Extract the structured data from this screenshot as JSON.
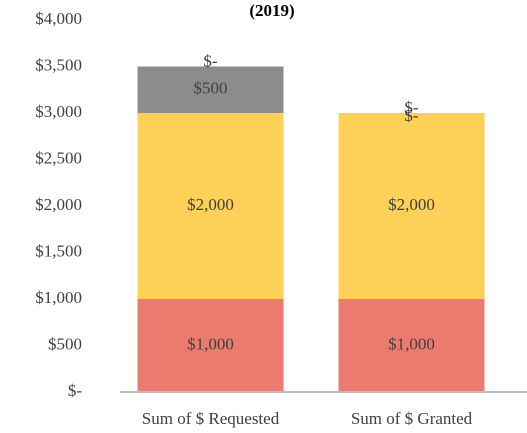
{
  "chart_data": {
    "type": "stacked_bar",
    "title": "(2019)",
    "categories": [
      "Sum of $ Requested",
      "Sum of $ Granted"
    ],
    "series": [
      {
        "color": "#ec7b6f",
        "values": [
          1000,
          1000
        ],
        "value_labels": [
          "$1,000",
          "$1,000"
        ]
      },
      {
        "color": "#fdd058",
        "values": [
          2000,
          2000
        ],
        "value_labels": [
          "$2,000",
          "$2,000"
        ]
      },
      {
        "color": "#8c8c8c",
        "values": [
          500,
          0
        ],
        "value_labels": [
          "$500",
          "$-"
        ]
      },
      {
        "color": "#a5a5a5",
        "values": [
          0,
          0
        ],
        "value_labels": [
          "$-",
          "$-"
        ]
      }
    ],
    "ylim": [
      0,
      4000
    ],
    "yticks": [
      {
        "value": 0,
        "label": "$-"
      },
      {
        "value": 500,
        "label": "$500"
      },
      {
        "value": 1000,
        "label": "$1,000"
      },
      {
        "value": 1500,
        "label": "$1,500"
      },
      {
        "value": 2000,
        "label": "$2,000"
      },
      {
        "value": 2500,
        "label": "$2,500"
      },
      {
        "value": 3000,
        "label": "$3,000"
      },
      {
        "value": 3500,
        "label": "$3,500"
      },
      {
        "value": 4000,
        "label": "$4,000"
      }
    ]
  }
}
